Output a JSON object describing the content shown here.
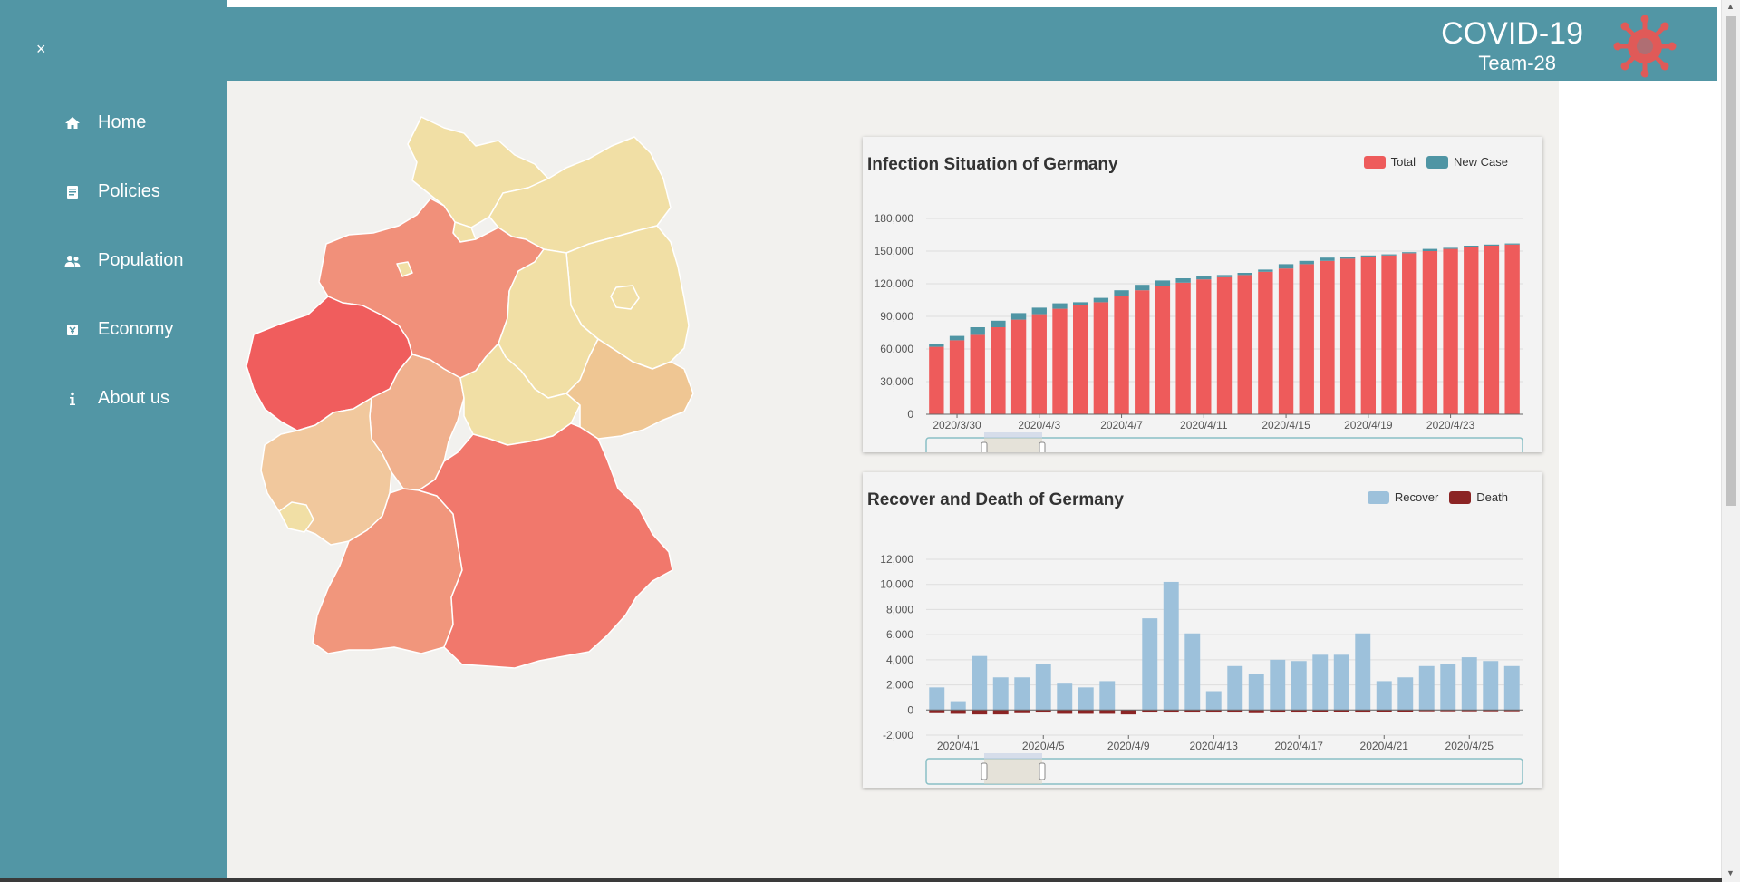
{
  "sidebar": {
    "close_label": "×",
    "items": [
      {
        "label": "Home",
        "icon": "home-icon"
      },
      {
        "label": "Policies",
        "icon": "document-icon"
      },
      {
        "label": "Population",
        "icon": "people-icon"
      },
      {
        "label": "Economy",
        "icon": "money-icon"
      },
      {
        "label": "About us",
        "icon": "info-icon"
      }
    ]
  },
  "header": {
    "title": "COVID-19",
    "subtitle": "Team-28",
    "logo_icon": "virus-icon"
  },
  "map": {
    "colors": {
      "bw": "#f1967c",
      "by": "#f1786c",
      "be": "#f1dfa5",
      "bb": "#f1dfa5",
      "hb": "#f1dfa5",
      "hh": "#f1dfa5",
      "he": "#f0b08d",
      "mv": "#f1dfa5",
      "ni": "#f1907a",
      "nw": "#f05d5d",
      "rp": "#f1c89d",
      "sl": "#f1dfa5",
      "sn": "#efc693",
      "st": "#f1dfa5",
      "sh": "#f1dfa5",
      "th": "#f1dfa5"
    }
  },
  "chart_data": [
    {
      "type": "bar",
      "stacked": true,
      "title": "Infection Situation of Germany",
      "x": [
        "2020/3/29",
        "2020/3/30",
        "2020/3/31",
        "2020/4/1",
        "2020/4/2",
        "2020/4/3",
        "2020/4/4",
        "2020/4/5",
        "2020/4/6",
        "2020/4/7",
        "2020/4/8",
        "2020/4/9",
        "2020/4/10",
        "2020/4/11",
        "2020/4/12",
        "2020/4/13",
        "2020/4/14",
        "2020/4/15",
        "2020/4/16",
        "2020/4/17",
        "2020/4/18",
        "2020/4/19",
        "2020/4/20",
        "2020/4/21",
        "2020/4/22",
        "2020/4/23",
        "2020/4/24",
        "2020/4/25",
        "2020/4/26"
      ],
      "tick_labels": [
        "2020/3/30",
        "2020/4/3",
        "2020/4/7",
        "2020/4/11",
        "2020/4/15",
        "2020/4/19",
        "2020/4/23"
      ],
      "series": [
        {
          "name": "Total",
          "color": "#ee5b5b",
          "values": [
            62000,
            68000,
            73000,
            80000,
            87000,
            92000,
            97000,
            100000,
            103000,
            109000,
            114000,
            118000,
            121000,
            124000,
            126000,
            128000,
            131000,
            134000,
            138000,
            141000,
            143000,
            145000,
            146000,
            148000,
            150000,
            152000,
            154000,
            155000,
            156000
          ]
        },
        {
          "name": "New Case",
          "color": "#4f95a4",
          "values": [
            3000,
            4000,
            7000,
            6000,
            6000,
            6000,
            5000,
            3000,
            4000,
            5000,
            5000,
            5000,
            4000,
            3000,
            2000,
            2000,
            2000,
            4000,
            3000,
            3000,
            2000,
            1000,
            1000,
            1000,
            2000,
            1000,
            1000,
            1000,
            1000
          ]
        }
      ],
      "yticks": [
        "0",
        "30,000",
        "60,000",
        "90,000",
        "120,000",
        "150,000",
        "180,000"
      ],
      "ylim": [
        0,
        180000
      ],
      "legend_position": "top-right"
    },
    {
      "type": "bar",
      "title": "Recover and Death of Germany",
      "x": [
        "2020/3/31",
        "2020/4/1",
        "2020/4/2",
        "2020/4/3",
        "2020/4/4",
        "2020/4/5",
        "2020/4/6",
        "2020/4/7",
        "2020/4/8",
        "2020/4/9",
        "2020/4/10",
        "2020/4/11",
        "2020/4/12",
        "2020/4/13",
        "2020/4/14",
        "2020/4/15",
        "2020/4/16",
        "2020/4/17",
        "2020/4/18",
        "2020/4/19",
        "2020/4/20",
        "2020/4/21",
        "2020/4/22",
        "2020/4/23",
        "2020/4/24",
        "2020/4/25",
        "2020/4/26",
        "2020/4/27"
      ],
      "tick_labels": [
        "2020/4/1",
        "2020/4/5",
        "2020/4/9",
        "2020/4/13",
        "2020/4/17",
        "2020/4/21",
        "2020/4/25"
      ],
      "series": [
        {
          "name": "Recover",
          "color": "#9dc1db",
          "values": [
            1800,
            700,
            4300,
            2600,
            2600,
            3700,
            2100,
            1800,
            2300,
            0,
            7300,
            10200,
            6100,
            1500,
            3500,
            2900,
            4000,
            3900,
            4400,
            4400,
            6100,
            2300,
            2600,
            3500,
            3700,
            4200,
            3900,
            3500
          ]
        },
        {
          "name": "Death",
          "color": "#8b2424",
          "values": [
            -250,
            -300,
            -350,
            -350,
            -250,
            -200,
            -300,
            -300,
            -300,
            -350,
            -200,
            -200,
            -200,
            -200,
            -200,
            -250,
            -200,
            -200,
            -150,
            -150,
            -200,
            -150,
            -150,
            -100,
            -100,
            -100,
            -100,
            -100
          ]
        }
      ],
      "yticks": [
        "-2,000",
        "0",
        "2,000",
        "4,000",
        "6,000",
        "8,000",
        "10,000",
        "12,000"
      ],
      "ylim": [
        -2000,
        12000
      ],
      "legend_position": "top-right"
    }
  ]
}
